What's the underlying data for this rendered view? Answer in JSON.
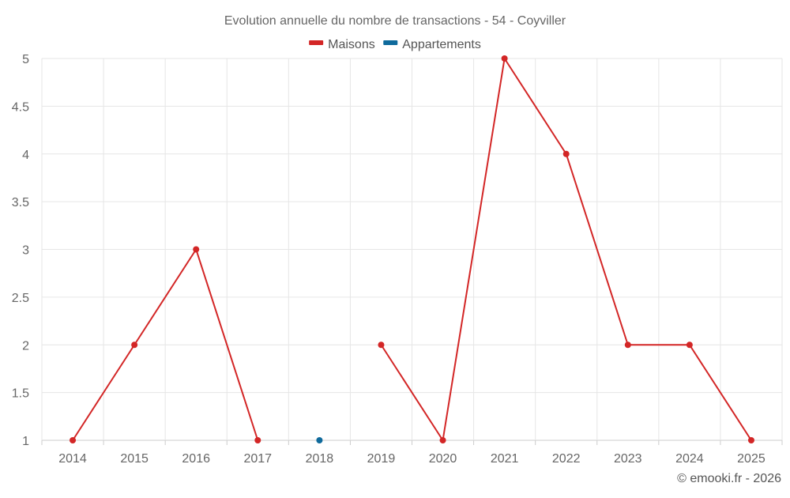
{
  "chart_data": {
    "type": "line",
    "title": "Evolution annuelle du nombre de transactions - 54 - Coyviller",
    "x": [
      "2014",
      "2015",
      "2016",
      "2017",
      "2018",
      "2019",
      "2020",
      "2021",
      "2022",
      "2023",
      "2024",
      "2025"
    ],
    "series": [
      {
        "name": "Maisons",
        "color": "#d32626",
        "values": [
          1,
          2,
          3,
          1,
          null,
          2,
          1,
          5,
          4,
          2,
          2,
          1
        ]
      },
      {
        "name": "Appartements",
        "color": "#0f6a9c",
        "values": [
          null,
          null,
          null,
          null,
          1,
          null,
          null,
          null,
          null,
          null,
          null,
          null
        ]
      }
    ],
    "ylim": [
      1,
      5
    ],
    "yticks": [
      "1",
      "1.5",
      "2",
      "2.5",
      "3",
      "3.5",
      "4",
      "4.5",
      "5"
    ],
    "grid": true,
    "legend_position": "top-center",
    "credit": "© emooki.fr - 2026"
  }
}
